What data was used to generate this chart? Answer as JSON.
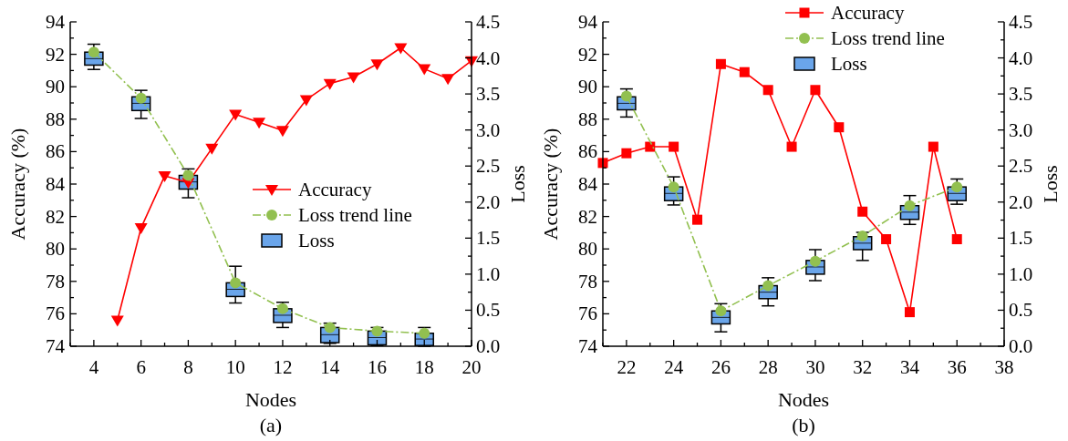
{
  "chart_data": [
    {
      "type": "line",
      "title": "(a)",
      "xlabel": "Nodes",
      "ylabel": "Accuracy (%)",
      "y2label": "Loss",
      "legend": "right",
      "xlim": [
        3,
        20
      ],
      "xticks": [
        {
          "value": 3,
          "label": null
        },
        4,
        {
          "value": 5,
          "label": null
        },
        6,
        {
          "value": 7,
          "label": null
        },
        8,
        {
          "value": 9,
          "label": null
        },
        10,
        {
          "value": 11,
          "label": null
        },
        12,
        {
          "value": 13,
          "label": null
        },
        14,
        {
          "value": 15,
          "label": null
        },
        16,
        {
          "value": 17,
          "label": null
        },
        18,
        {
          "value": 19,
          "label": null
        },
        20
      ],
      "ylim": [
        74,
        94
      ],
      "yticks": [
        74,
        {
          "value": 75,
          "label": null
        },
        76,
        {
          "value": 77,
          "label": null
        },
        78,
        {
          "value": 79,
          "label": null
        },
        80,
        {
          "value": 81,
          "label": null
        },
        82,
        {
          "value": 83,
          "label": null
        },
        84,
        {
          "value": 85,
          "label": null
        },
        86,
        {
          "value": 87,
          "label": null
        },
        88,
        {
          "value": 89,
          "label": null
        },
        90,
        {
          "value": 91,
          "label": null
        },
        92,
        {
          "value": 93,
          "label": null
        },
        94
      ],
      "y2lim": [
        0,
        4.5
      ],
      "y2ticks": [
        {
          "value": 0,
          "label": "0.0"
        },
        {
          "value": 0.25,
          "label": null
        },
        0.5,
        {
          "value": 0.75,
          "label": null
        },
        {
          "value": 1,
          "label": "1.0"
        },
        {
          "value": 1.25,
          "label": null
        },
        1.5,
        {
          "value": 1.75,
          "label": null
        },
        {
          "value": 2,
          "label": "2.0"
        },
        {
          "value": 2.25,
          "label": null
        },
        2.5,
        {
          "value": 2.75,
          "label": null
        },
        {
          "value": 3,
          "label": "3.0"
        },
        {
          "value": 3.25,
          "label": null
        },
        3.5,
        {
          "value": 3.75,
          "label": null
        },
        {
          "value": 4,
          "label": "4.0"
        },
        {
          "value": 4.25,
          "label": null
        },
        4.5
      ],
      "series": [
        {
          "name": "Accuracy",
          "color": "#ff0000",
          "marker": "triangle",
          "line_style": "solid",
          "x": [
            5,
            6,
            7,
            8,
            9,
            10,
            11,
            12,
            13,
            14,
            15,
            16,
            17,
            18,
            19,
            20
          ],
          "values": [
            75.6,
            81.3,
            84.5,
            84.1,
            86.2,
            88.3,
            87.8,
            87.3,
            89.2,
            90.2,
            90.6,
            91.4,
            92.4,
            91.1,
            90.5,
            91.6
          ]
        },
        {
          "name": "Loss trend line",
          "axis": "y2",
          "color": "#92c050",
          "marker": "circle",
          "line_style": "dashed",
          "x": [
            4,
            6,
            8,
            10,
            12,
            14,
            16,
            18
          ],
          "values": [
            4.08,
            3.44,
            2.37,
            0.88,
            0.52,
            0.26,
            0.21,
            0.18
          ]
        },
        {
          "name": "Loss",
          "type": "box",
          "axis": "y2",
          "color": "#6aa5ea",
          "x": [
            4,
            6,
            8,
            10,
            12,
            14,
            16,
            18
          ],
          "boxes": [
            {
              "low": 3.84,
              "q1": 3.9,
              "median": 3.99,
              "q3": 4.08,
              "high": 4.19
            },
            {
              "low": 3.16,
              "q1": 3.27,
              "median": 3.37,
              "q3": 3.46,
              "high": 3.55
            },
            {
              "low": 2.06,
              "q1": 2.18,
              "median": 2.28,
              "q3": 2.37,
              "high": 2.46
            },
            {
              "low": 0.6,
              "q1": 0.69,
              "median": 0.79,
              "q3": 0.88,
              "high": 1.11
            },
            {
              "low": 0.26,
              "q1": 0.33,
              "median": 0.43,
              "q3": 0.52,
              "high": 0.61
            },
            {
              "low": 0.04,
              "q1": 0.05,
              "median": 0.16,
              "q3": 0.26,
              "high": 0.32
            },
            {
              "low": 0.01,
              "q1": 0.02,
              "median": 0.12,
              "q3": 0.21,
              "high": 0.26
            },
            {
              "low": 0.0,
              "q1": 0.01,
              "median": 0.1,
              "q3": 0.18,
              "high": 0.26
            }
          ]
        }
      ]
    },
    {
      "type": "line",
      "title": "(b)",
      "xlabel": "Nodes",
      "ylabel": "Accuracy (%)",
      "y2label": "Loss",
      "legend": "top right",
      "xlim": [
        21,
        38
      ],
      "xticks": [
        {
          "value": 21,
          "label": null
        },
        22,
        {
          "value": 23,
          "label": null
        },
        24,
        {
          "value": 25,
          "label": null
        },
        26,
        {
          "value": 27,
          "label": null
        },
        28,
        {
          "value": 29,
          "label": null
        },
        30,
        {
          "value": 31,
          "label": null
        },
        32,
        {
          "value": 33,
          "label": null
        },
        34,
        {
          "value": 35,
          "label": null
        },
        36,
        {
          "value": 37,
          "label": null
        },
        38
      ],
      "ylim": [
        74,
        94
      ],
      "yticks": [
        74,
        {
          "value": 75,
          "label": null
        },
        76,
        {
          "value": 77,
          "label": null
        },
        78,
        {
          "value": 79,
          "label": null
        },
        80,
        {
          "value": 81,
          "label": null
        },
        82,
        {
          "value": 83,
          "label": null
        },
        84,
        {
          "value": 85,
          "label": null
        },
        86,
        {
          "value": 87,
          "label": null
        },
        88,
        {
          "value": 89,
          "label": null
        },
        90,
        {
          "value": 91,
          "label": null
        },
        92,
        {
          "value": 93,
          "label": null
        },
        94
      ],
      "y2lim": [
        0,
        4.5
      ],
      "y2ticks": [
        {
          "value": 0,
          "label": "0.0"
        },
        {
          "value": 0.25,
          "label": null
        },
        0.5,
        {
          "value": 0.75,
          "label": null
        },
        {
          "value": 1,
          "label": "1.0"
        },
        {
          "value": 1.25,
          "label": null
        },
        1.5,
        {
          "value": 1.75,
          "label": null
        },
        {
          "value": 2,
          "label": "2.0"
        },
        {
          "value": 2.25,
          "label": null
        },
        2.5,
        {
          "value": 2.75,
          "label": null
        },
        {
          "value": 3,
          "label": "3.0"
        },
        {
          "value": 3.25,
          "label": null
        },
        3.5,
        {
          "value": 3.75,
          "label": null
        },
        {
          "value": 4,
          "label": "4.0"
        },
        {
          "value": 4.25,
          "label": null
        },
        4.5
      ],
      "series": [
        {
          "name": "Accuracy",
          "color": "#ff0000",
          "marker": "square",
          "line_style": "solid",
          "x": [
            21,
            22,
            23,
            24,
            25,
            26,
            27,
            28,
            29,
            30,
            31,
            32,
            33,
            34,
            35,
            36
          ],
          "values": [
            85.3,
            85.9,
            86.3,
            86.3,
            81.8,
            91.4,
            90.9,
            89.8,
            86.3,
            89.8,
            87.5,
            82.3,
            80.6,
            76.1,
            86.3,
            80.6
          ]
        },
        {
          "name": "Loss trend line",
          "axis": "y2",
          "color": "#92c050",
          "marker": "circle",
          "line_style": "dashed",
          "x": [
            22,
            24,
            26,
            28,
            30,
            32,
            34,
            36
          ],
          "values": [
            3.47,
            2.21,
            0.49,
            0.84,
            1.18,
            1.53,
            1.95,
            2.21
          ]
        },
        {
          "name": "Loss",
          "type": "box",
          "axis": "y2",
          "color": "#6aa5ea",
          "x": [
            22,
            24,
            26,
            28,
            30,
            32,
            34,
            36
          ],
          "boxes": [
            {
              "low": 3.18,
              "q1": 3.28,
              "median": 3.37,
              "q3": 3.46,
              "high": 3.57
            },
            {
              "low": 1.96,
              "q1": 2.02,
              "median": 2.12,
              "q3": 2.21,
              "high": 2.35
            },
            {
              "low": 0.2,
              "q1": 0.31,
              "median": 0.4,
              "q3": 0.49,
              "high": 0.59
            },
            {
              "low": 0.56,
              "q1": 0.66,
              "median": 0.75,
              "q3": 0.84,
              "high": 0.95
            },
            {
              "low": 0.91,
              "q1": 1.0,
              "median": 1.1,
              "q3": 1.19,
              "high": 1.34
            },
            {
              "low": 1.19,
              "q1": 1.34,
              "median": 1.43,
              "q3": 1.52,
              "high": 1.58
            },
            {
              "low": 1.69,
              "q1": 1.76,
              "median": 1.86,
              "q3": 1.95,
              "high": 2.09
            },
            {
              "low": 1.97,
              "q1": 2.02,
              "median": 2.12,
              "q3": 2.21,
              "high": 2.32
            }
          ]
        }
      ]
    }
  ]
}
